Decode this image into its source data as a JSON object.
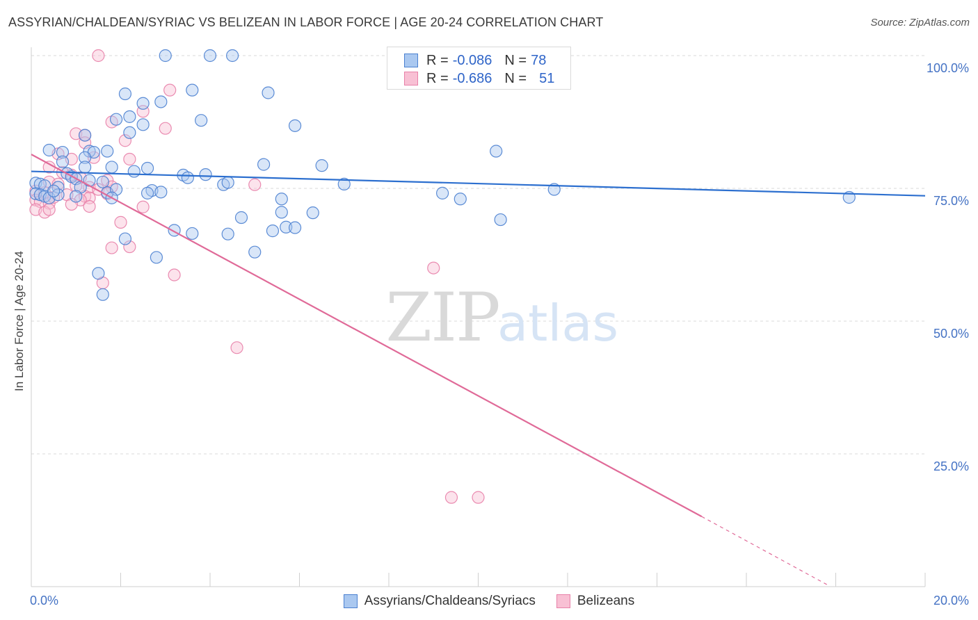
{
  "title": "ASSYRIAN/CHALDEAN/SYRIAC VS BELIZEAN IN LABOR FORCE | AGE 20-24 CORRELATION CHART",
  "source": "Source: ZipAtlas.com",
  "watermark": {
    "zip": "ZIP",
    "atlas": "atlas"
  },
  "colors": {
    "blue": "#4a80d0",
    "blue_fill": "#aac8f0",
    "blue_line": "#2c6fcf",
    "pink": "#e880a8",
    "pink_fill": "#f8c0d4",
    "pink_line": "#e06a98",
    "axis_text": "#4472c4",
    "grid": "#d8d8d8"
  },
  "legend": {
    "rows": [
      {
        "r_label": "R = ",
        "r_value": "-0.086",
        "n_label": "N = ",
        "n_value": "78"
      },
      {
        "r_label": "R = ",
        "r_value": "-0.686",
        "n_label": "N = ",
        "n_value": "51"
      }
    ]
  },
  "chart_data": {
    "type": "scatter",
    "xlabel": "",
    "ylabel": "In Labor Force | Age 20-24",
    "xlim": [
      0,
      20
    ],
    "ylim": [
      0,
      100
    ],
    "x_tick_labels": [
      {
        "value": 0,
        "label": "0.0%"
      },
      {
        "value": 20,
        "label": "20.0%"
      }
    ],
    "y_tick_labels": [
      {
        "value": 100,
        "label": "100.0%"
      },
      {
        "value": 75,
        "label": "75.0%"
      },
      {
        "value": 50,
        "label": "50.0%"
      },
      {
        "value": 25,
        "label": "25.0%"
      }
    ],
    "x_minor_ticks": [
      0,
      2,
      4,
      6,
      8,
      10,
      12,
      14,
      16,
      18,
      20
    ],
    "y_gridlines": [
      100,
      75,
      50,
      25
    ],
    "series": [
      {
        "name": "Assyrians/Chaldeans/Syriacs",
        "color": "blue",
        "trend": {
          "x0": 0,
          "y0": 78.2,
          "x1": 20,
          "y1": 73.6
        },
        "points": [
          [
            3.0,
            100
          ],
          [
            4.0,
            100
          ],
          [
            4.5,
            100
          ],
          [
            2.1,
            92.8
          ],
          [
            5.3,
            93.0
          ],
          [
            3.6,
            93.5
          ],
          [
            2.9,
            91.3
          ],
          [
            2.5,
            91.0
          ],
          [
            1.9,
            88.0
          ],
          [
            2.2,
            88.5
          ],
          [
            3.8,
            87.8
          ],
          [
            5.9,
            86.8
          ],
          [
            2.5,
            87.0
          ],
          [
            2.2,
            85.5
          ],
          [
            1.2,
            85.0
          ],
          [
            10.4,
            82.0
          ],
          [
            0.4,
            82.2
          ],
          [
            0.7,
            81.8
          ],
          [
            1.3,
            82.0
          ],
          [
            1.4,
            81.8
          ],
          [
            1.7,
            82.0
          ],
          [
            1.2,
            80.8
          ],
          [
            0.7,
            80.0
          ],
          [
            1.2,
            79.0
          ],
          [
            1.8,
            79.0
          ],
          [
            5.2,
            79.5
          ],
          [
            6.5,
            79.3
          ],
          [
            2.6,
            78.8
          ],
          [
            2.3,
            78.2
          ],
          [
            3.4,
            77.5
          ],
          [
            3.5,
            77.0
          ],
          [
            3.9,
            77.6
          ],
          [
            0.8,
            77.8
          ],
          [
            0.9,
            77.2
          ],
          [
            1.0,
            76.8
          ],
          [
            1.3,
            76.5
          ],
          [
            1.6,
            76.2
          ],
          [
            0.1,
            76.0
          ],
          [
            0.2,
            75.8
          ],
          [
            0.3,
            75.5
          ],
          [
            0.6,
            75.2
          ],
          [
            1.1,
            75.2
          ],
          [
            1.7,
            74.2
          ],
          [
            1.9,
            74.8
          ],
          [
            2.7,
            74.6
          ],
          [
            2.6,
            74.1
          ],
          [
            4.3,
            75.7
          ],
          [
            4.4,
            76.1
          ],
          [
            7.0,
            75.8
          ],
          [
            9.2,
            74.1
          ],
          [
            11.7,
            74.8
          ],
          [
            0.1,
            74.0
          ],
          [
            0.2,
            73.8
          ],
          [
            0.3,
            73.5
          ],
          [
            0.4,
            73.2
          ],
          [
            0.6,
            73.8
          ],
          [
            1.0,
            73.5
          ],
          [
            1.8,
            73.2
          ],
          [
            5.6,
            73.0
          ],
          [
            9.6,
            73.0
          ],
          [
            18.3,
            73.3
          ],
          [
            5.6,
            70.5
          ],
          [
            6.3,
            70.4
          ],
          [
            4.7,
            69.5
          ],
          [
            10.5,
            69.1
          ],
          [
            3.2,
            67.1
          ],
          [
            3.6,
            66.5
          ],
          [
            4.4,
            66.4
          ],
          [
            5.4,
            67.0
          ],
          [
            5.7,
            67.7
          ],
          [
            5.9,
            67.6
          ],
          [
            2.1,
            65.5
          ],
          [
            5.0,
            63.0
          ],
          [
            2.8,
            62.0
          ],
          [
            1.5,
            59.0
          ],
          [
            1.6,
            55.0
          ],
          [
            0.5,
            74.5
          ],
          [
            2.9,
            74.3
          ]
        ]
      },
      {
        "name": "Belizeans",
        "color": "pink",
        "trend": {
          "x0": 0,
          "y0": 81.4,
          "x1": 15.0,
          "y1": 13.2,
          "x_dash_end": 17.8,
          "y_dash_end": 0.4
        },
        "points": [
          [
            1.5,
            100
          ],
          [
            3.1,
            93.5
          ],
          [
            2.5,
            89.5
          ],
          [
            1.8,
            87.5
          ],
          [
            3.0,
            86.3
          ],
          [
            1.0,
            85.3
          ],
          [
            1.2,
            85.0
          ],
          [
            2.1,
            84.0
          ],
          [
            1.2,
            83.6
          ],
          [
            0.6,
            81.5
          ],
          [
            0.9,
            80.5
          ],
          [
            1.4,
            80.8
          ],
          [
            2.2,
            80.5
          ],
          [
            0.4,
            79.0
          ],
          [
            0.7,
            78.0
          ],
          [
            0.9,
            77.5
          ],
          [
            1.1,
            77.0
          ],
          [
            1.7,
            76.5
          ],
          [
            0.4,
            76.2
          ],
          [
            0.6,
            75.8
          ],
          [
            1.0,
            75.5
          ],
          [
            1.3,
            75.2
          ],
          [
            1.5,
            74.8
          ],
          [
            1.8,
            75.3
          ],
          [
            5.0,
            75.7
          ],
          [
            0.1,
            74.5
          ],
          [
            0.3,
            74.2
          ],
          [
            0.8,
            73.8
          ],
          [
            1.2,
            73.5
          ],
          [
            1.3,
            73.2
          ],
          [
            1.1,
            72.8
          ],
          [
            0.1,
            72.8
          ],
          [
            0.2,
            72.5
          ],
          [
            0.4,
            72.2
          ],
          [
            0.9,
            72.0
          ],
          [
            1.3,
            71.6
          ],
          [
            2.5,
            71.5
          ],
          [
            0.1,
            71.0
          ],
          [
            0.3,
            70.5
          ],
          [
            0.4,
            71.0
          ],
          [
            2.0,
            68.6
          ],
          [
            1.8,
            63.8
          ],
          [
            2.2,
            64.0
          ],
          [
            3.2,
            58.7
          ],
          [
            1.6,
            57.2
          ],
          [
            9.0,
            60.0
          ],
          [
            4.6,
            45.0
          ],
          [
            9.4,
            16.8
          ],
          [
            10.0,
            16.8
          ],
          [
            1.7,
            74.0
          ],
          [
            0.5,
            73.3
          ]
        ]
      }
    ]
  }
}
